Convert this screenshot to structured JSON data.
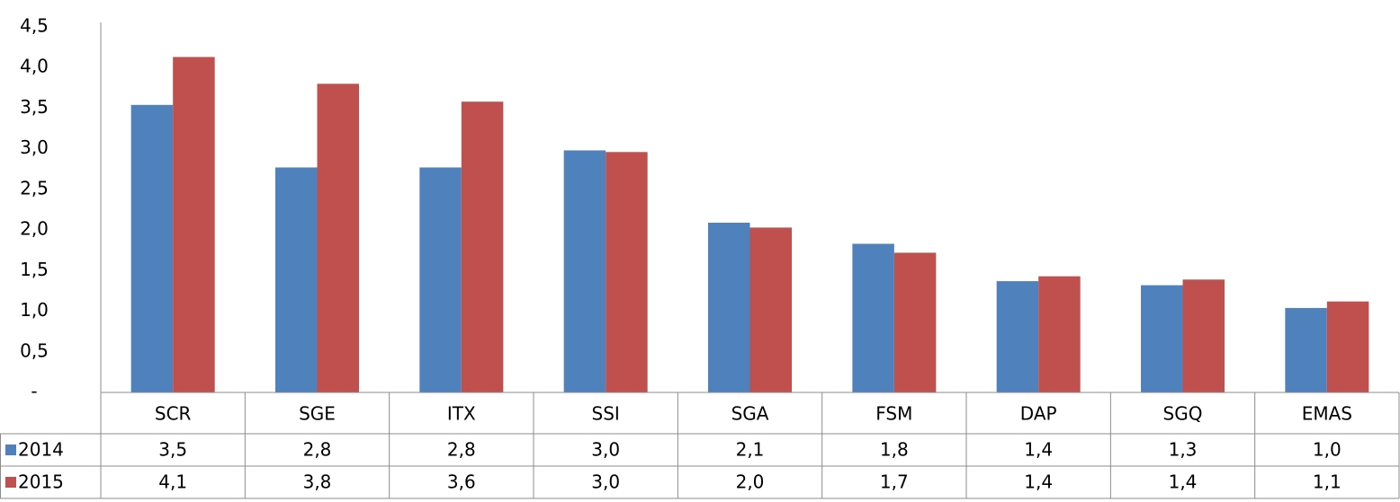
{
  "chart_data": {
    "type": "bar",
    "categories": [
      "SCR",
      "SGE",
      "ITX",
      "SSI",
      "SGA",
      "FSM",
      "DAP",
      "SGQ",
      "EMAS"
    ],
    "series": [
      {
        "name": "2014",
        "color": "#4f81bd",
        "values": [
          3.54,
          2.77,
          2.77,
          2.98,
          2.09,
          1.83,
          1.37,
          1.32,
          1.04
        ],
        "value_labels": [
          "3,5",
          "2,8",
          "2,8",
          "3,0",
          "2,1",
          "1,8",
          "1,4",
          "1,3",
          "1,0"
        ]
      },
      {
        "name": "2015",
        "color": "#c0504d",
        "values": [
          4.13,
          3.8,
          3.58,
          2.96,
          2.03,
          1.72,
          1.43,
          1.39,
          1.12
        ],
        "value_labels": [
          "4,1",
          "3,8",
          "3,6",
          "3,0",
          "2,0",
          "1,7",
          "1,4",
          "1,4",
          "1,1"
        ]
      }
    ],
    "ylim": [
      0,
      4.5
    ],
    "yticks": [
      {
        "value": 0,
        "label": "-"
      },
      {
        "value": 0.5,
        "label": "0,5"
      },
      {
        "value": 1,
        "label": "1,0"
      },
      {
        "value": 1.5,
        "label": "1,5"
      },
      {
        "value": 2,
        "label": "2,0"
      },
      {
        "value": 2.5,
        "label": "2,5"
      },
      {
        "value": 3,
        "label": "3,0"
      },
      {
        "value": 3.5,
        "label": "3,5"
      },
      {
        "value": 4,
        "label": "4,0"
      },
      {
        "value": 4.5,
        "label": "4,5"
      }
    ],
    "grid": false
  }
}
